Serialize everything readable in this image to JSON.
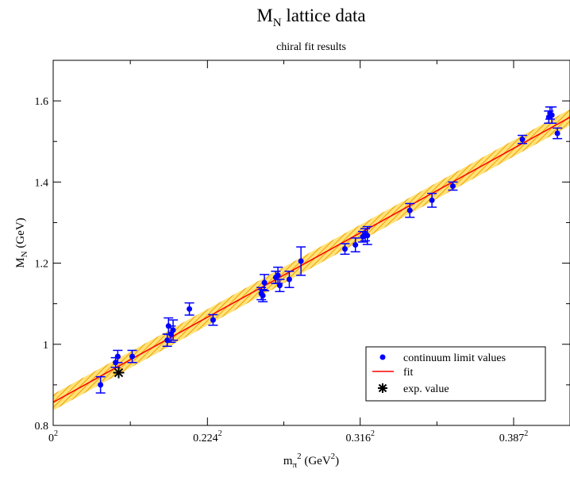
{
  "chart_data": {
    "type": "scatter",
    "title": "M",
    "title_sub": "N",
    "title_rest": " lattice data",
    "subtitle": "chiral fit results",
    "xlabel": {
      "main": "m",
      "sub": "π",
      "sup": "2",
      "rest": " (GeV",
      "sup2": "2",
      "close": ")"
    },
    "ylabel": {
      "main": "M",
      "sub": "N",
      "rest": " (GeV)"
    },
    "x_scale": "squared",
    "xlim": [
      0,
      0.1681
    ],
    "ylim": [
      0.8,
      1.7
    ],
    "x_ticks": [
      {
        "value": 0,
        "base": "0",
        "sup": "2"
      },
      {
        "value": 0.050176,
        "base": "0.224",
        "sup": "2"
      },
      {
        "value": 0.099856,
        "base": "0.316",
        "sup": "2"
      },
      {
        "value": 0.149769,
        "base": "0.387",
        "sup": "2"
      }
    ],
    "y_ticks": [
      {
        "value": 0.8,
        "label": "0.8"
      },
      {
        "value": 1.0,
        "label": "1"
      },
      {
        "value": 1.2,
        "label": "1.2"
      },
      {
        "value": 1.4,
        "label": "1.4"
      },
      {
        "value": 1.6,
        "label": "1.6"
      }
    ],
    "grid": false,
    "legend_position": "bottom-right",
    "series": [
      {
        "name": "continuum limit values",
        "marker": "circle",
        "color": "#0000ff",
        "points": [
          {
            "x": 0.0154,
            "y": 0.9,
            "err": 0.02
          },
          {
            "x": 0.0203,
            "y": 0.955,
            "err": 0.012
          },
          {
            "x": 0.021,
            "y": 0.97,
            "err": 0.015
          },
          {
            "x": 0.0257,
            "y": 0.97,
            "err": 0.015
          },
          {
            "x": 0.0371,
            "y": 1.01,
            "err": 0.015
          },
          {
            "x": 0.0375,
            "y": 1.045,
            "err": 0.02
          },
          {
            "x": 0.0383,
            "y": 1.025,
            "err": 0.02
          },
          {
            "x": 0.039,
            "y": 1.035,
            "err": 0.025
          },
          {
            "x": 0.0443,
            "y": 1.087,
            "err": 0.015
          },
          {
            "x": 0.052,
            "y": 1.06,
            "err": 0.013
          },
          {
            "x": 0.0677,
            "y": 1.125,
            "err": 0.015
          },
          {
            "x": 0.0682,
            "y": 1.12,
            "err": 0.015
          },
          {
            "x": 0.0687,
            "y": 1.152,
            "err": 0.02
          },
          {
            "x": 0.0724,
            "y": 1.165,
            "err": 0.015
          },
          {
            "x": 0.0731,
            "y": 1.17,
            "err": 0.02
          },
          {
            "x": 0.0737,
            "y": 1.145,
            "err": 0.015
          },
          {
            "x": 0.0768,
            "y": 1.16,
            "err": 0.02
          },
          {
            "x": 0.0806,
            "y": 1.205,
            "err": 0.035
          },
          {
            "x": 0.0949,
            "y": 1.235,
            "err": 0.013
          },
          {
            "x": 0.0983,
            "y": 1.245,
            "err": 0.017
          },
          {
            "x": 0.1007,
            "y": 1.265,
            "err": 0.013
          },
          {
            "x": 0.1015,
            "y": 1.27,
            "err": 0.015
          },
          {
            "x": 0.1022,
            "y": 1.268,
            "err": 0.022
          },
          {
            "x": 0.116,
            "y": 1.33,
            "err": 0.017
          },
          {
            "x": 0.1232,
            "y": 1.355,
            "err": 0.017
          },
          {
            "x": 0.13,
            "y": 1.39,
            "err": 0.01
          },
          {
            "x": 0.1526,
            "y": 1.505,
            "err": 0.01
          },
          {
            "x": 0.1612,
            "y": 1.56,
            "err": 0.015
          },
          {
            "x": 0.1616,
            "y": 1.57,
            "err": 0.015
          },
          {
            "x": 0.1622,
            "y": 1.565,
            "err": 0.02
          },
          {
            "x": 0.164,
            "y": 1.52,
            "err": 0.013
          }
        ]
      },
      {
        "name": "fit",
        "type": "line",
        "color": "#ff0000",
        "band_color": "#ffb000",
        "intercept": 0.857,
        "slope": 4.18,
        "band_halfwidth": 0.02
      },
      {
        "name": "exp. value",
        "marker": "asterisk",
        "color": "#000000",
        "points": [
          {
            "x": 0.0213,
            "y": 0.93
          }
        ]
      }
    ]
  }
}
